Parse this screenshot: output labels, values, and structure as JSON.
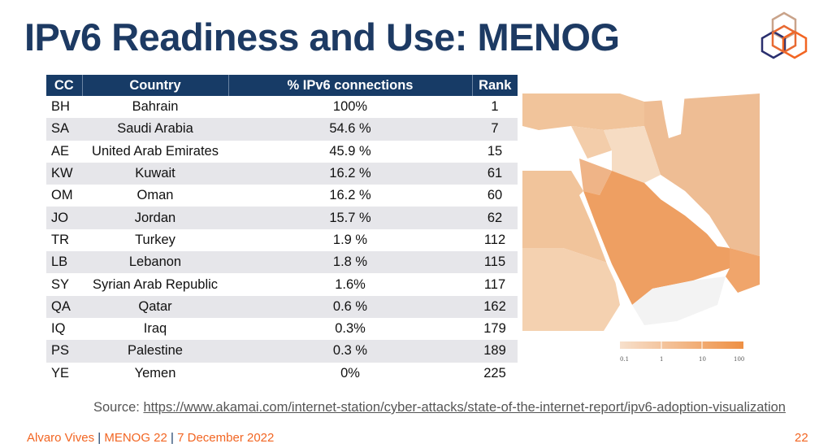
{
  "title": "IPv6 Readiness and Use: MENOG",
  "table": {
    "headers": [
      "CC",
      "Country",
      "% IPv6 connections",
      "Rank"
    ],
    "rows": [
      [
        "BH",
        "Bahrain",
        "100%",
        "1"
      ],
      [
        "SA",
        "Saudi Arabia",
        "54.6 %",
        "7"
      ],
      [
        "AE",
        "United Arab Emirates",
        "45.9 %",
        "15"
      ],
      [
        "KW",
        "Kuwait",
        "16.2 %",
        "61"
      ],
      [
        "OM",
        "Oman",
        "16.2 %",
        "60"
      ],
      [
        "JO",
        "Jordan",
        "15.7 %",
        "62"
      ],
      [
        "TR",
        "Turkey",
        "1.9 %",
        "112"
      ],
      [
        "LB",
        "Lebanon",
        "1.8 %",
        "115"
      ],
      [
        "SY",
        "Syrian Arab Republic",
        "1.6%",
        "117"
      ],
      [
        "QA",
        "Qatar",
        "0.6 %",
        "162"
      ],
      [
        "IQ",
        "Iraq",
        "0.3%",
        "179"
      ],
      [
        "PS",
        "Palestine",
        "0.3 %",
        "189"
      ],
      [
        "YE",
        "Yemen",
        "0%",
        "225"
      ]
    ]
  },
  "legend": {
    "ticks": [
      "0.1",
      "1",
      "10",
      "100"
    ]
  },
  "source": {
    "label": "Source: ",
    "url": "https://www.akamai.com/internet-station/cyber-attacks/state-of-the-internet-report/ipv6-adoption-visualization"
  },
  "footer": {
    "author": "Alvaro Vives",
    "event": "MENOG 22",
    "date": "7 December 2022",
    "sep": "|",
    "page": "22"
  },
  "colors": {
    "title": "#1d3a63",
    "header": "#173b66",
    "accent": "#f26522"
  }
}
